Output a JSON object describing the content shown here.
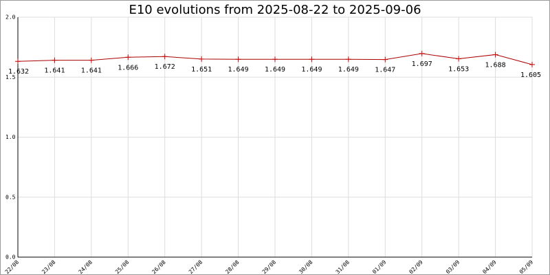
{
  "chart_data": {
    "type": "line",
    "title": "E10 evolutions from 2025-08-22 to 2025-09-06",
    "categories": [
      "22/08",
      "23/08",
      "24/08",
      "25/08",
      "26/08",
      "27/08",
      "28/08",
      "29/08",
      "30/08",
      "31/08",
      "01/09",
      "02/09",
      "03/09",
      "04/09",
      "05/09"
    ],
    "values": [
      1.632,
      1.641,
      1.641,
      1.666,
      1.672,
      1.651,
      1.649,
      1.649,
      1.649,
      1.649,
      1.647,
      1.697,
      1.653,
      1.688,
      1.605
    ],
    "color": "#cc0000",
    "ylim": [
      0,
      2
    ],
    "yticks": [
      {
        "value": 0,
        "label": "0.0"
      },
      0.5,
      {
        "value": 1,
        "label": "1.0"
      },
      1.5,
      {
        "value": 2,
        "label": "2.0"
      }
    ],
    "grid": true
  }
}
